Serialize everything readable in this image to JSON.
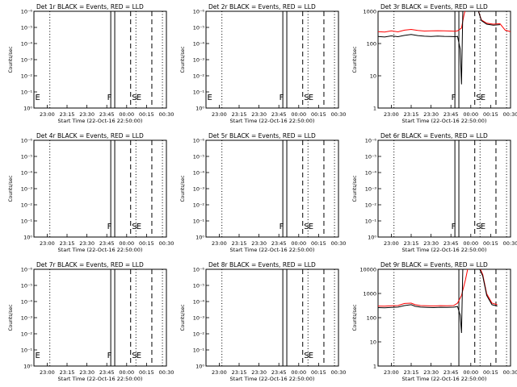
{
  "chart_data": [
    {
      "type": "line",
      "title": "Det 1r BLACK = Events, RED = LLD",
      "ylabel": "Counts/sec",
      "xlabel": "Start Time (22-Oct-16 22:50:00)",
      "x_tick_labels": [
        "23:00",
        "23:15",
        "23:30",
        "23:45",
        "00:00",
        "00:15",
        "00:30"
      ],
      "xlim": [
        "22:50",
        "00:30"
      ],
      "y_scale": "log",
      "ylim": [
        1,
        10000
      ],
      "y_tick_labels": [
        "10⁰",
        "10⁻¹",
        "10⁻²",
        "10⁻³",
        "10⁻⁴",
        "10⁻⁵",
        "10⁻⁶"
      ],
      "markers": [
        {
          "time": "23:02",
          "style": "dotted",
          "label": ""
        },
        {
          "time": "23:48",
          "style": "solid",
          "label": "F"
        },
        {
          "time": "23:51",
          "style": "solid",
          "label": ""
        },
        {
          "time": "00:03",
          "style": "dashed",
          "label": "S"
        },
        {
          "time": "00:07",
          "style": "dotted",
          "label": "E"
        },
        {
          "time": "00:19",
          "style": "dashed",
          "label": ""
        },
        {
          "time": "00:27",
          "style": "dotted",
          "label": ""
        }
      ],
      "start_label": "E",
      "series": []
    },
    {
      "type": "line",
      "title": "Det 2r BLACK = Events, RED = LLD",
      "ylabel": "Counts/sec",
      "xlabel": "Start Time (22-Oct-16 22:50:00)",
      "x_tick_labels": [
        "23:00",
        "23:15",
        "23:30",
        "23:45",
        "00:00",
        "00:15",
        "00:30"
      ],
      "xlim": [
        "22:50",
        "00:30"
      ],
      "y_scale": "log",
      "ylim": [
        1,
        10000
      ],
      "y_tick_labels": [
        "10⁰",
        "10⁻¹",
        "10⁻²",
        "10⁻³",
        "10⁻⁴",
        "10⁻⁵",
        "10⁻⁶"
      ],
      "markers": [
        {
          "time": "23:02",
          "style": "dotted",
          "label": ""
        },
        {
          "time": "23:48",
          "style": "solid",
          "label": "F"
        },
        {
          "time": "23:51",
          "style": "solid",
          "label": ""
        },
        {
          "time": "00:03",
          "style": "dashed",
          "label": "S"
        },
        {
          "time": "00:07",
          "style": "dotted",
          "label": "E"
        },
        {
          "time": "00:19",
          "style": "dashed",
          "label": ""
        },
        {
          "time": "00:27",
          "style": "dotted",
          "label": ""
        }
      ],
      "start_label": "E",
      "series": []
    },
    {
      "type": "line",
      "title": "Det 3r BLACK = Events, RED = LLD",
      "ylabel": "Counts/sec",
      "xlabel": "Start Time (22-Oct-16 22:50:00)",
      "x_tick_labels": [
        "23:00",
        "23:15",
        "23:30",
        "23:45",
        "00:00",
        "00:15",
        "00:30"
      ],
      "xlim": [
        "22:50",
        "00:30"
      ],
      "y_scale": "log",
      "ylim": [
        1,
        1000
      ],
      "y_tick_labels": [
        "1",
        "10",
        "100",
        "1000"
      ],
      "markers": [
        {
          "time": "23:02",
          "style": "dotted",
          "label": ""
        },
        {
          "time": "23:48",
          "style": "solid",
          "label": "F"
        },
        {
          "time": "23:51",
          "style": "solid",
          "label": ""
        },
        {
          "time": "00:03",
          "style": "dashed",
          "label": "S"
        },
        {
          "time": "00:07",
          "style": "dotted",
          "label": "E"
        },
        {
          "time": "00:19",
          "style": "dashed",
          "label": ""
        },
        {
          "time": "00:27",
          "style": "dotted",
          "label": ""
        }
      ],
      "start_label": "",
      "series": [
        {
          "color": "#ff0000",
          "points": [
            [
              0,
              180
            ],
            [
              5,
              175
            ],
            [
              10,
              190
            ],
            [
              15,
              178
            ],
            [
              20,
              200
            ],
            [
              25,
              210
            ],
            [
              30,
              195
            ],
            [
              35,
              188
            ],
            [
              40,
              190
            ],
            [
              45,
              192
            ],
            [
              50,
              190
            ],
            [
              55,
              188
            ],
            [
              58,
              185
            ],
            [
              60,
              190
            ],
            [
              63,
              230
            ],
            [
              65,
              600
            ],
            [
              67,
              1100
            ],
            [
              70,
              1300
            ],
            [
              73,
              1200
            ],
            [
              75,
              900
            ],
            [
              78,
              400
            ],
            [
              82,
              320
            ],
            [
              87,
              300
            ],
            [
              92,
              310
            ],
            [
              96,
              200
            ],
            [
              100,
              180
            ]
          ]
        },
        {
          "color": "#000000",
          "points": [
            [
              0,
              130
            ],
            [
              5,
              125
            ],
            [
              10,
              135
            ],
            [
              15,
              128
            ],
            [
              20,
              140
            ],
            [
              25,
              148
            ],
            [
              30,
              138
            ],
            [
              35,
              132
            ],
            [
              40,
              130
            ],
            [
              45,
              133
            ],
            [
              50,
              131
            ],
            [
              55,
              130
            ],
            [
              58,
              128
            ],
            [
              60,
              130
            ],
            [
              62,
              55
            ],
            [
              63,
              5
            ],
            [
              64,
              900
            ],
            [
              66,
              1200
            ],
            [
              70,
              1300
            ],
            [
              73,
              1200
            ],
            [
              75,
              900
            ],
            [
              78,
              380
            ],
            [
              82,
              300
            ],
            [
              87,
              280
            ],
            [
              92,
              290
            ]
          ]
        }
      ]
    },
    {
      "type": "line",
      "title": "Det 4r BLACK = Events, RED = LLD",
      "ylabel": "Counts/sec",
      "xlabel": "Start Time (22-Oct-16 22:50:00)",
      "x_tick_labels": [
        "23:00",
        "23:15",
        "23:30",
        "23:45",
        "00:00",
        "00:15",
        "00:30"
      ],
      "xlim": [
        "22:50",
        "00:30"
      ],
      "y_scale": "log",
      "ylim": [
        1,
        10000
      ],
      "y_tick_labels": [
        "10⁰",
        "10⁻¹",
        "10⁻²",
        "10⁻³",
        "10⁻⁴",
        "10⁻⁵",
        "10⁻⁶"
      ],
      "markers": [
        {
          "time": "23:02",
          "style": "dotted",
          "label": ""
        },
        {
          "time": "23:48",
          "style": "solid",
          "label": "F"
        },
        {
          "time": "23:51",
          "style": "solid",
          "label": ""
        },
        {
          "time": "00:03",
          "style": "dashed",
          "label": "S"
        },
        {
          "time": "00:07",
          "style": "dotted",
          "label": "E"
        },
        {
          "time": "00:19",
          "style": "dashed",
          "label": ""
        },
        {
          "time": "00:27",
          "style": "dotted",
          "label": ""
        }
      ],
      "start_label": "",
      "series": []
    },
    {
      "type": "line",
      "title": "Det 5r BLACK = Events, RED = LLD",
      "ylabel": "Counts/sec",
      "xlabel": "Start Time (22-Oct-16 22:50:00)",
      "x_tick_labels": [
        "23:00",
        "23:15",
        "23:30",
        "23:45",
        "00:00",
        "00:15",
        "00:30"
      ],
      "xlim": [
        "22:50",
        "00:30"
      ],
      "y_scale": "log",
      "ylim": [
        1,
        10000
      ],
      "y_tick_labels": [
        "10⁰",
        "10⁻¹",
        "10⁻²",
        "10⁻³",
        "10⁻⁴",
        "10⁻⁵",
        "10⁻⁶"
      ],
      "markers": [
        {
          "time": "23:02",
          "style": "dotted",
          "label": ""
        },
        {
          "time": "23:48",
          "style": "solid",
          "label": "F"
        },
        {
          "time": "23:51",
          "style": "solid",
          "label": ""
        },
        {
          "time": "00:03",
          "style": "dashed",
          "label": "S"
        },
        {
          "time": "00:07",
          "style": "dotted",
          "label": "E"
        },
        {
          "time": "00:19",
          "style": "dashed",
          "label": ""
        },
        {
          "time": "00:27",
          "style": "dotted",
          "label": ""
        }
      ],
      "start_label": "",
      "series": []
    },
    {
      "type": "line",
      "title": "Det 6r BLACK = Events, RED = LLD",
      "ylabel": "Counts/sec",
      "xlabel": "Start Time (22-Oct-16 22:50:00)",
      "x_tick_labels": [
        "23:00",
        "23:15",
        "23:30",
        "23:45",
        "00:00",
        "00:15",
        "00:30"
      ],
      "xlim": [
        "22:50",
        "00:30"
      ],
      "y_scale": "log",
      "ylim": [
        1,
        10000
      ],
      "y_tick_labels": [
        "10⁰",
        "10⁻¹",
        "10⁻²",
        "10⁻³",
        "10⁻⁴",
        "10⁻⁵",
        "10⁻⁶"
      ],
      "markers": [
        {
          "time": "23:02",
          "style": "dotted",
          "label": ""
        },
        {
          "time": "23:48",
          "style": "solid",
          "label": "F"
        },
        {
          "time": "23:51",
          "style": "solid",
          "label": ""
        },
        {
          "time": "00:03",
          "style": "dashed",
          "label": "S"
        },
        {
          "time": "00:07",
          "style": "dotted",
          "label": "E"
        },
        {
          "time": "00:19",
          "style": "dashed",
          "label": ""
        },
        {
          "time": "00:27",
          "style": "dotted",
          "label": ""
        }
      ],
      "start_label": "",
      "series": []
    },
    {
      "type": "line",
      "title": "Det 7r BLACK = Events, RED = LLD",
      "ylabel": "Counts/sec",
      "xlabel": "Start Time (22-Oct-16 22:50:00)",
      "x_tick_labels": [
        "23:00",
        "23:15",
        "23:30",
        "23:45",
        "00:00",
        "00:15",
        "00:30"
      ],
      "xlim": [
        "22:50",
        "00:30"
      ],
      "y_scale": "log",
      "ylim": [
        1,
        10000
      ],
      "y_tick_labels": [
        "10⁰",
        "10⁻¹",
        "10⁻²",
        "10⁻³",
        "10⁻⁴",
        "10⁻⁵",
        "10⁻⁶"
      ],
      "markers": [
        {
          "time": "23:02",
          "style": "dotted",
          "label": ""
        },
        {
          "time": "23:48",
          "style": "solid",
          "label": "F"
        },
        {
          "time": "23:51",
          "style": "solid",
          "label": ""
        },
        {
          "time": "00:03",
          "style": "dashed",
          "label": "S"
        },
        {
          "time": "00:07",
          "style": "dotted",
          "label": "E"
        },
        {
          "time": "00:19",
          "style": "dashed",
          "label": ""
        },
        {
          "time": "00:27",
          "style": "dotted",
          "label": ""
        }
      ],
      "start_label": "E",
      "series": []
    },
    {
      "type": "line",
      "title": "Det 8r BLACK = Events, RED = LLD",
      "ylabel": "Counts/sec",
      "xlabel": "Start Time (22-Oct-16 22:50:00)",
      "x_tick_labels": [
        "23:00",
        "23:15",
        "23:30",
        "23:45",
        "00:00",
        "00:15",
        "00:30"
      ],
      "xlim": [
        "22:50",
        "00:30"
      ],
      "y_scale": "log",
      "ylim": [
        1,
        10000
      ],
      "y_tick_labels": [
        "10⁰",
        "10⁻¹",
        "10⁻²",
        "10⁻³",
        "10⁻⁴",
        "10⁻⁵",
        "10⁻⁶"
      ],
      "markers": [
        {
          "time": "23:02",
          "style": "dotted",
          "label": ""
        },
        {
          "time": "23:48",
          "style": "solid",
          "label": ""
        },
        {
          "time": "23:51",
          "style": "solid",
          "label": ""
        },
        {
          "time": "00:03",
          "style": "dashed",
          "label": "S"
        },
        {
          "time": "00:07",
          "style": "dotted",
          "label": "E"
        },
        {
          "time": "00:19",
          "style": "dashed",
          "label": ""
        },
        {
          "time": "00:27",
          "style": "dotted",
          "label": ""
        }
      ],
      "start_label": "",
      "series": []
    },
    {
      "type": "line",
      "title": "Det 9r BLACK = Events, RED = LLD",
      "ylabel": "Counts/sec",
      "xlabel": "Start Time (22-Oct-16 22:50:00)",
      "x_tick_labels": [
        "23:00",
        "23:15",
        "23:30",
        "23:45",
        "00:00",
        "00:15",
        "00:30"
      ],
      "xlim": [
        "22:50",
        "00:30"
      ],
      "y_scale": "log",
      "ylim": [
        1,
        10000
      ],
      "y_tick_labels": [
        "1",
        "10",
        "100",
        "1000",
        "10000"
      ],
      "markers": [
        {
          "time": "23:02",
          "style": "dotted",
          "label": ""
        },
        {
          "time": "23:51",
          "style": "solid",
          "label": ""
        },
        {
          "time": "00:03",
          "style": "dashed",
          "label": ""
        },
        {
          "time": "00:07",
          "style": "dotted",
          "label": ""
        },
        {
          "time": "00:19",
          "style": "dashed",
          "label": ""
        },
        {
          "time": "00:27",
          "style": "dotted",
          "label": ""
        }
      ],
      "start_label": "",
      "series": [
        {
          "color": "#ff0000",
          "points": [
            [
              0,
              230
            ],
            [
              5,
              228
            ],
            [
              10,
              235
            ],
            [
              15,
              240
            ],
            [
              20,
              290
            ],
            [
              25,
              300
            ],
            [
              28,
              260
            ],
            [
              32,
              240
            ],
            [
              37,
              235
            ],
            [
              42,
              232
            ],
            [
              47,
              238
            ],
            [
              52,
              236
            ],
            [
              57,
              240
            ],
            [
              60,
              300
            ],
            [
              63,
              600
            ],
            [
              66,
              2500
            ],
            [
              68,
              8000
            ],
            [
              70,
              12000
            ],
            [
              73,
              12000
            ],
            [
              76,
              9000
            ],
            [
              79,
              4000
            ],
            [
              82,
              700
            ],
            [
              86,
              300
            ],
            [
              90,
              260
            ]
          ]
        },
        {
          "color": "#000000",
          "points": [
            [
              0,
              200
            ],
            [
              5,
              198
            ],
            [
              10,
              205
            ],
            [
              15,
              210
            ],
            [
              20,
              240
            ],
            [
              25,
              260
            ],
            [
              28,
              225
            ],
            [
              32,
              210
            ],
            [
              37,
              205
            ],
            [
              42,
              200
            ],
            [
              47,
              206
            ],
            [
              52,
              204
            ],
            [
              57,
              208
            ],
            [
              60,
              220
            ],
            [
              62,
              100
            ],
            [
              63,
              20
            ],
            [
              64,
              9000
            ],
            [
              66,
              11000
            ],
            [
              70,
              12000
            ],
            [
              73,
              12000
            ],
            [
              76,
              8000
            ],
            [
              79,
              3500
            ],
            [
              82,
              600
            ],
            [
              86,
              260
            ],
            [
              90,
              230
            ]
          ]
        }
      ]
    }
  ]
}
